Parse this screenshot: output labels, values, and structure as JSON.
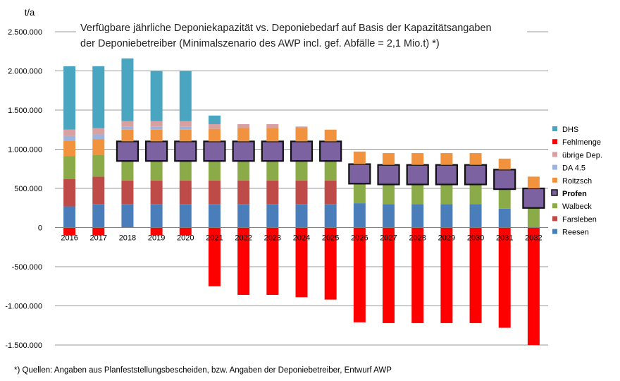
{
  "chart_data": {
    "type": "bar",
    "stacked": true,
    "title_lines": [
      "Verfügbare jährliche Deponiekapazität  vs. Deponiebedarf auf Basis der Kapazitätsangaben",
      "der Deponiebetreiber (Minimalszenario des AWP incl. gef. Abfälle = 2,1 Mio.t) *)"
    ],
    "ylabel": "t/a",
    "footnote": "*) Quellen: Angaben aus Planfeststellungsbescheiden, bzw. Angaben der Deponiebetreiber, Entwurf AWP",
    "ylim": [
      -1500000,
      2500000
    ],
    "yticks": [
      {
        "value": 2500000,
        "label": "2.500.000"
      },
      {
        "value": 2000000,
        "label": "2.000.000"
      },
      {
        "value": 1500000,
        "label": "1.500.000"
      },
      {
        "value": 1000000,
        "label": "1.000.000"
      },
      {
        "value": 500000,
        "label": "500.000"
      },
      {
        "value": 0,
        "label": "0"
      },
      {
        "value": -500000,
        "label": "-500.000"
      },
      {
        "value": -1000000,
        "label": "-1.000.000"
      },
      {
        "value": -1500000,
        "label": "-1.500.000"
      }
    ],
    "categories": [
      "2016",
      "2017",
      "2018",
      "2019",
      "2020",
      "2021",
      "2022",
      "2023",
      "2024",
      "2025",
      "2026",
      "2027",
      "2028",
      "2029",
      "2030",
      "2031",
      "2032"
    ],
    "legend_position": "right",
    "series": [
      {
        "name": "Reesen",
        "color": "#4a7ebb",
        "values": [
          270000,
          300000,
          300000,
          300000,
          300000,
          300000,
          300000,
          300000,
          300000,
          300000,
          310000,
          300000,
          300000,
          300000,
          300000,
          240000,
          0
        ]
      },
      {
        "name": "Farsleben",
        "color": "#be4b48",
        "values": [
          350000,
          350000,
          300000,
          300000,
          300000,
          300000,
          300000,
          300000,
          300000,
          300000,
          0,
          0,
          0,
          0,
          0,
          0,
          0
        ]
      },
      {
        "name": "Walbeck",
        "color": "#8bab48",
        "values": [
          290000,
          280000,
          250000,
          250000,
          250000,
          250000,
          250000,
          250000,
          250000,
          250000,
          250000,
          250000,
          250000,
          250000,
          250000,
          250000,
          250000
        ]
      },
      {
        "name": "Profen",
        "color": "#7c62a0",
        "values": [
          0,
          0,
          250000,
          250000,
          250000,
          250000,
          250000,
          250000,
          250000,
          250000,
          250000,
          250000,
          250000,
          250000,
          250000,
          250000,
          250000
        ]
      },
      {
        "name": "Roitzsch",
        "color": "#f0923e",
        "values": [
          200000,
          200000,
          150000,
          150000,
          150000,
          160000,
          170000,
          170000,
          170000,
          150000,
          160000,
          150000,
          150000,
          150000,
          150000,
          140000,
          150000
        ]
      },
      {
        "name": "DA 4.5",
        "color": "#9eb3dc",
        "values": [
          60000,
          60000,
          40000,
          40000,
          40000,
          0,
          0,
          0,
          0,
          0,
          0,
          0,
          0,
          0,
          0,
          0,
          0
        ]
      },
      {
        "name": "übrige Dep.",
        "color": "#d8a0a0",
        "values": [
          80000,
          80000,
          70000,
          70000,
          70000,
          60000,
          50000,
          50000,
          20000,
          0,
          0,
          0,
          0,
          0,
          0,
          0,
          0
        ]
      },
      {
        "name": "Fehlmenge",
        "color": "#ff0000",
        "values": [
          -100000,
          -100000,
          0,
          -100000,
          -100000,
          -750000,
          -860000,
          -860000,
          -890000,
          -920000,
          -1210000,
          -1220000,
          -1220000,
          -1220000,
          -1220000,
          -1280000,
          -1500000
        ]
      },
      {
        "name": "DHS",
        "color": "#4aa5c0",
        "values": [
          810000,
          790000,
          800000,
          640000,
          640000,
          110000,
          0,
          0,
          0,
          0,
          0,
          0,
          0,
          0,
          0,
          0,
          0
        ]
      }
    ],
    "legend_order": [
      "DHS",
      "Fehlmenge",
      "übrige Dep.",
      "DA 4.5",
      "Roitzsch",
      "Profen",
      "Walbeck",
      "Farsleben",
      "Reesen"
    ],
    "highlighted_series": "Profen"
  }
}
